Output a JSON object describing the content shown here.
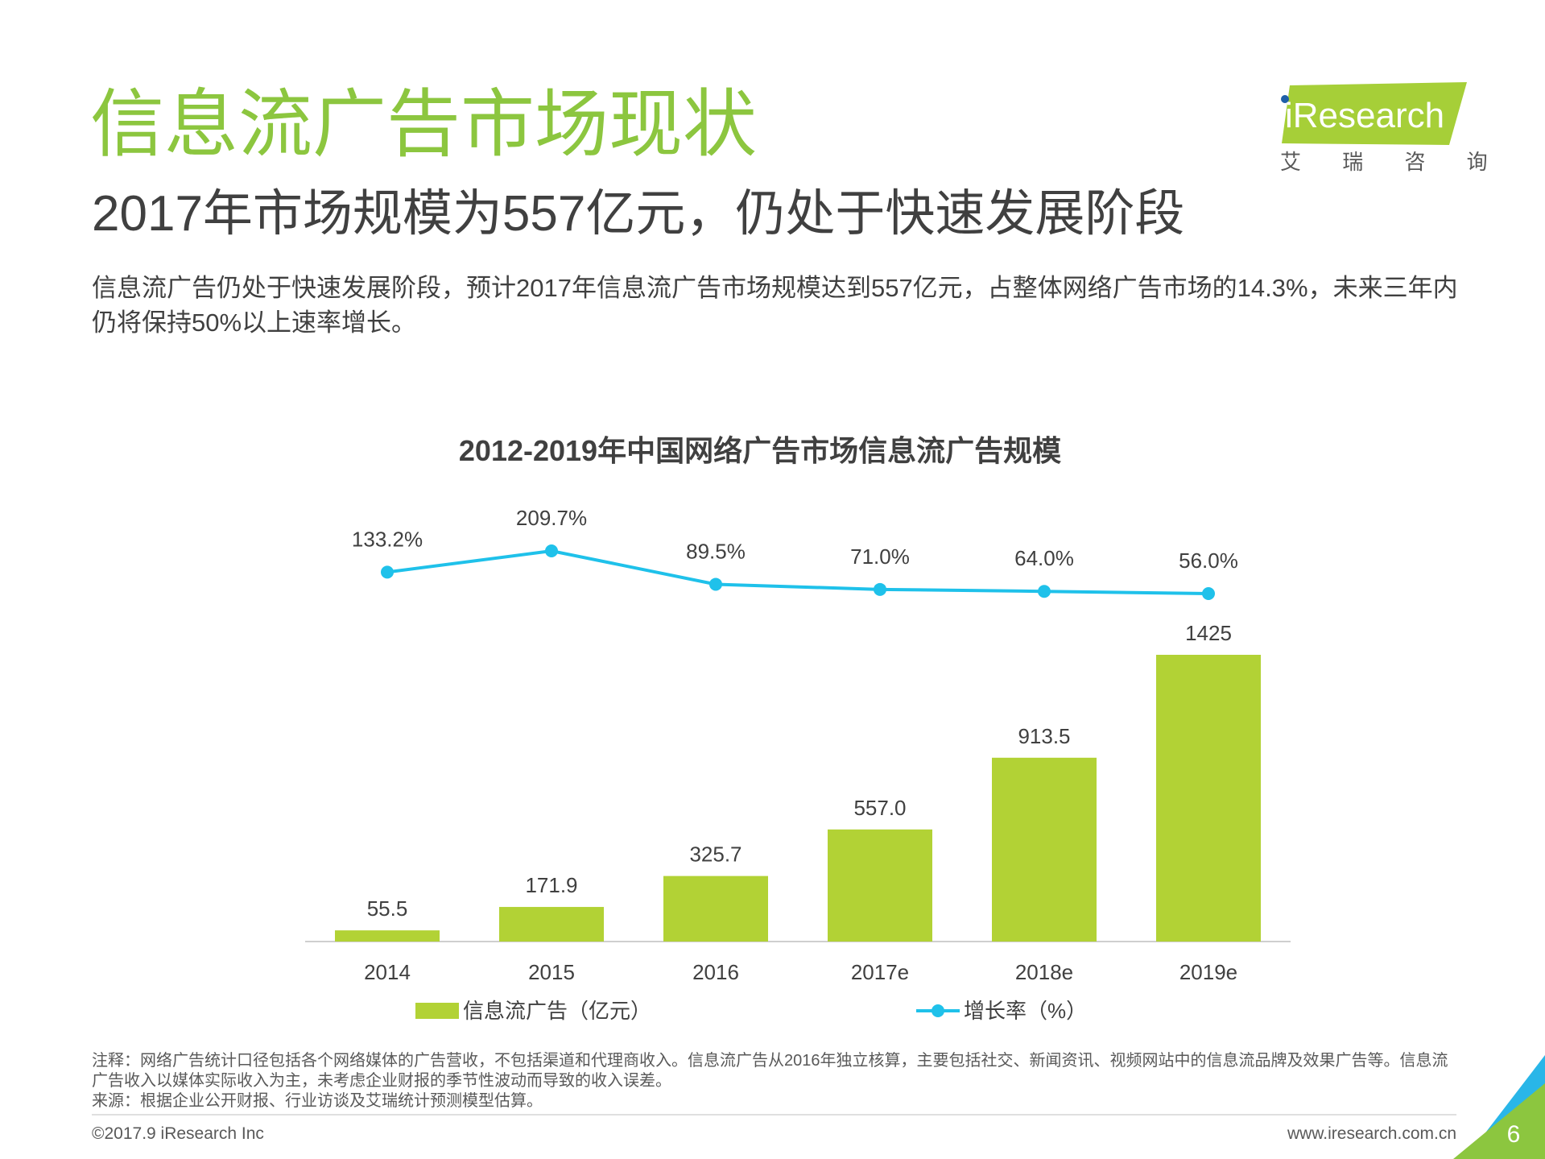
{
  "header": {
    "title": "信息流广告市场现状",
    "subtitle": "2017年市场规模为557亿元，仍处于快速发展阶段",
    "description": "信息流广告仍处于快速发展阶段，预计2017年信息流广告市场规模达到557亿元，占整体网络广告市场的14.3%，未来三年内仍将保持50%以上速率增长。"
  },
  "logo": {
    "name": "iResearch",
    "chinese": "艾 瑞 咨 询"
  },
  "chart_data": {
    "type": "combo",
    "title": "2012-2019年中国网络广告市场信息流广告规模",
    "categories": [
      "2014",
      "2015",
      "2016",
      "2017e",
      "2018e",
      "2019e"
    ],
    "series": [
      {
        "name": "信息流广告（亿元）",
        "type": "bar",
        "color": "#b2d235",
        "values": [
          55.5,
          171.9,
          325.7,
          557.0,
          913.5,
          1425
        ],
        "value_labels": [
          "55.5",
          "171.9",
          "325.7",
          "557.0",
          "913.5",
          "1425"
        ]
      },
      {
        "name": "增长率（%）",
        "type": "line",
        "color": "#1fc1ea",
        "values": [
          133.2,
          209.7,
          89.5,
          71.0,
          64.0,
          56.0
        ],
        "value_labels": [
          "133.2%",
          "209.7%",
          "89.5%",
          "71.0%",
          "64.0%",
          "56.0%"
        ]
      }
    ]
  },
  "notes": {
    "note": "注释：网络广告统计口径包括各个网络媒体的广告营收，不包括渠道和代理商收入。信息流广告从2016年独立核算，主要包括社交、新闻资讯、视频网站中的信息流品牌及效果广告等。信息流广告收入以媒体实际收入为主，未考虑企业财报的季节性波动而导致的收入误差。",
    "source": "来源：根据企业公开财报、行业访谈及艾瑞统计预测模型估算。"
  },
  "footer": {
    "copyright": "©2017.9 iResearch Inc",
    "website": "www.iresearch.com.cn",
    "page_number": "6"
  }
}
